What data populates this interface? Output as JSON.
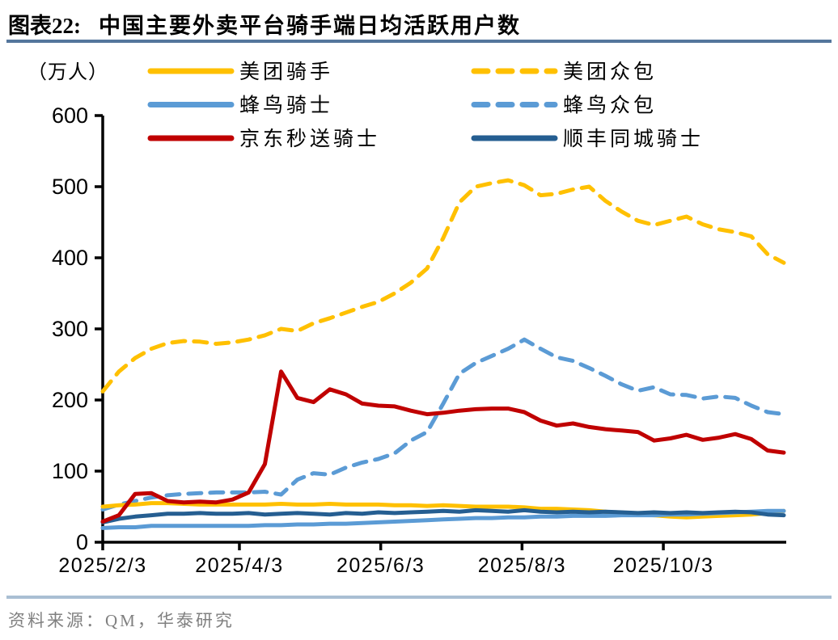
{
  "header": {
    "label": "图表22:",
    "title": "中国主要外卖平台骑手端日均活跃用户数"
  },
  "source": {
    "text": "资料来源：QM，华泰研究"
  },
  "colors": {
    "rule_top": "#54769C",
    "rule_bottom": "#A9BFD3",
    "axis": "#000000",
    "source_text": "#808080",
    "meituan_yellow": "#FFC000",
    "fengniao_blue": "#5B9BD5",
    "jd_red": "#C00000",
    "sf_darkblue": "#255E91"
  },
  "chart_data": {
    "type": "line",
    "title": "中国主要外卖平台骑手端日均活跃用户数",
    "unit_label": "（万人）",
    "ylim": [
      0,
      600
    ],
    "yticks": [
      0,
      100,
      200,
      300,
      400,
      500,
      600
    ],
    "xtick_labels": [
      "2025/2/3",
      "2025/4/3",
      "2025/6/3",
      "2025/8/3",
      "2025/10/3"
    ],
    "xtick_days": [
      0,
      59,
      120,
      181,
      242
    ],
    "total_days": 294,
    "grid": false,
    "x_weekly_dates": [
      "2/3",
      "2/10",
      "2/17",
      "2/24",
      "3/3",
      "3/10",
      "3/17",
      "3/24",
      "3/31",
      "4/7",
      "4/14",
      "4/21",
      "4/28",
      "5/5",
      "5/12",
      "5/19",
      "5/26",
      "6/2",
      "6/9",
      "6/16",
      "6/23",
      "6/30",
      "7/7",
      "7/14",
      "7/21",
      "7/28",
      "8/4",
      "8/11",
      "8/18",
      "8/25",
      "9/1",
      "9/8",
      "9/15",
      "9/22",
      "9/29",
      "10/6",
      "10/13",
      "10/20",
      "10/27",
      "11/3",
      "11/10",
      "11/17",
      "11/24"
    ],
    "series": [
      {
        "name": "美团众包",
        "color": "#FFC000",
        "dash": true,
        "values": [
          212,
          240,
          259,
          272,
          280,
          283,
          282,
          279,
          281,
          285,
          291,
          300,
          297,
          308,
          315,
          323,
          331,
          338,
          350,
          365,
          385,
          428,
          478,
          500,
          505,
          509,
          502,
          488,
          490,
          496,
          500,
          480,
          465,
          452,
          446,
          452,
          458,
          447,
          440,
          436,
          430,
          405,
          393
        ]
      },
      {
        "name": "蜂鸟众包",
        "color": "#5B9BD5",
        "dash": true,
        "values": [
          46,
          53,
          58,
          63,
          66,
          68,
          69,
          70,
          70,
          70,
          71,
          67,
          88,
          97,
          95,
          105,
          112,
          117,
          125,
          143,
          155,
          195,
          237,
          252,
          262,
          272,
          285,
          272,
          260,
          255,
          245,
          234,
          222,
          213,
          218,
          208,
          207,
          202,
          205,
          203,
          192,
          183,
          180
        ]
      },
      {
        "name": "美团骑手",
        "color": "#FFC000",
        "dash": false,
        "values": [
          50,
          52,
          53,
          55,
          55,
          54,
          53,
          53,
          53,
          53,
          53,
          54,
          53,
          53,
          54,
          53,
          53,
          53,
          52,
          52,
          51,
          52,
          51,
          50,
          50,
          50,
          49,
          47,
          47,
          46,
          45,
          43,
          41,
          39,
          38,
          36,
          35,
          36,
          37,
          38,
          39,
          41,
          44
        ]
      },
      {
        "name": "蜂鸟骑士",
        "color": "#5B9BD5",
        "dash": false,
        "values": [
          20,
          21,
          21,
          23,
          23,
          23,
          23,
          23,
          23,
          23,
          24,
          24,
          25,
          25,
          26,
          26,
          27,
          28,
          29,
          30,
          31,
          32,
          33,
          34,
          34,
          35,
          35,
          36,
          36,
          37,
          37,
          37,
          38,
          38,
          38,
          39,
          39,
          40,
          41,
          42,
          43,
          44,
          44
        ]
      },
      {
        "name": "顺丰同城骑士",
        "color": "#255E91",
        "dash": false,
        "values": [
          28,
          33,
          36,
          38,
          40,
          40,
          41,
          40,
          40,
          41,
          39,
          40,
          41,
          40,
          39,
          41,
          40,
          42,
          41,
          42,
          43,
          44,
          43,
          45,
          44,
          43,
          45,
          43,
          42,
          43,
          42,
          43,
          42,
          41,
          42,
          41,
          42,
          41,
          42,
          43,
          42,
          39,
          38
        ]
      },
      {
        "name": "京东秒送骑士",
        "color": "#C00000",
        "dash": false,
        "values": [
          29,
          38,
          68,
          69,
          58,
          56,
          57,
          56,
          60,
          70,
          110,
          240,
          203,
          197,
          215,
          208,
          195,
          192,
          191,
          185,
          180,
          182,
          185,
          187,
          188,
          188,
          183,
          171,
          164,
          167,
          162,
          159,
          157,
          155,
          143,
          146,
          151,
          144,
          147,
          152,
          145,
          129,
          126
        ]
      }
    ],
    "legend": {
      "position": "top-inside",
      "columns": [
        [
          "美团骑手",
          "蜂鸟骑士",
          "京东秒送骑士"
        ],
        [
          "美团众包",
          "蜂鸟众包",
          "顺丰同城骑士"
        ]
      ]
    }
  }
}
